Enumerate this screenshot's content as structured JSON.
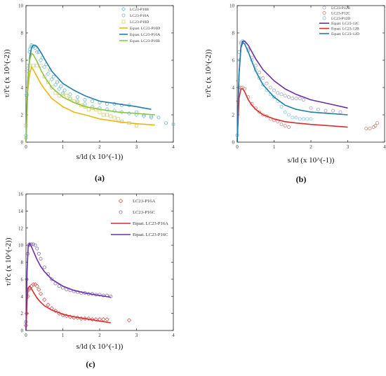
{
  "chart_data": [
    {
      "type": "scatter",
      "panel_label": "(a)",
      "xlabel": "s/ld (x 10^(-1))",
      "ylabel": "τ/f'c (x 10^(-2))",
      "xlim": [
        0,
        4
      ],
      "ylim": [
        0,
        10
      ],
      "xticks": [
        "0",
        "1",
        "2",
        "3",
        "4"
      ],
      "yticks": [
        "0",
        "2",
        "4",
        "6",
        "8",
        "10"
      ],
      "legend_position": "top-right",
      "series": [
        {
          "name": "LC23-P10B",
          "kind": "marker",
          "marker": "diamond",
          "color": "#7ec8e3",
          "x": [
            0.0,
            0.02,
            0.05,
            0.1,
            0.15,
            0.2,
            0.3,
            0.4,
            0.5,
            0.6,
            0.7,
            0.8,
            0.9,
            1.0,
            1.2,
            1.4,
            1.6,
            1.8,
            2.0,
            2.2,
            2.4,
            2.6,
            2.8,
            3.0,
            3.2,
            3.4
          ],
          "y": [
            0.5,
            3.5,
            5.2,
            6.6,
            7.0,
            7.0,
            6.6,
            6.0,
            5.5,
            5.0,
            4.6,
            4.2,
            3.9,
            3.6,
            3.2,
            3.0,
            2.8,
            2.6,
            2.5,
            2.4,
            2.3,
            2.2,
            2.1,
            2.0,
            1.9,
            1.8
          ]
        },
        {
          "name": "LC23-P10A",
          "kind": "marker",
          "marker": "circle",
          "color": "#7ab6c6",
          "x": [
            0.0,
            0.02,
            0.05,
            0.1,
            0.15,
            0.2,
            0.25,
            0.35,
            0.45,
            0.55,
            0.65,
            0.75,
            0.85,
            0.95,
            1.05,
            1.2,
            1.4,
            1.6,
            1.8,
            2.0,
            2.2,
            2.4,
            2.6,
            2.8,
            3.0,
            3.2,
            3.4,
            3.6,
            3.8,
            4.0
          ],
          "y": [
            0.3,
            3.4,
            5.6,
            6.8,
            7.1,
            7.0,
            6.9,
            6.6,
            6.2,
            5.7,
            5.3,
            4.8,
            4.4,
            4.1,
            3.8,
            3.5,
            3.3,
            3.1,
            3.0,
            2.9,
            2.8,
            2.8,
            2.7,
            2.7,
            2.2,
            2.0,
            1.9,
            1.8,
            1.4,
            1.3
          ]
        },
        {
          "name": "LC23-P10D",
          "kind": "marker",
          "marker": "square",
          "color": "#d9cf7a",
          "x": [
            0.0,
            0.02,
            0.05,
            0.1,
            0.2,
            0.3,
            0.4,
            0.5,
            0.6,
            0.7,
            0.8,
            0.9,
            1.0,
            1.1,
            1.2,
            1.3,
            1.4,
            1.5,
            1.6,
            1.7,
            1.8,
            1.9,
            2.0,
            2.1,
            2.2,
            2.3,
            2.4,
            2.5,
            2.6,
            2.8,
            3.0
          ],
          "y": [
            1.2,
            5.2,
            5.6,
            5.6,
            5.6,
            5.6,
            5.6,
            4.8,
            4.4,
            4.0,
            3.6,
            3.4,
            3.5,
            3.4,
            3.2,
            3.0,
            2.9,
            2.7,
            2.6,
            2.4,
            2.5,
            2.4,
            2.2,
            2.0,
            2.0,
            1.9,
            1.8,
            1.7,
            1.5,
            1.4,
            1.2
          ]
        },
        {
          "name": "Equat. LC23-P10D",
          "kind": "line",
          "color": "#e7b812",
          "x": [
            0.0,
            0.05,
            0.1,
            0.15,
            0.2,
            0.3,
            0.4,
            0.5,
            0.7,
            1.0,
            1.3,
            1.6,
            2.0,
            2.5,
            3.0,
            3.5
          ],
          "y": [
            0.0,
            3.8,
            5.0,
            5.5,
            5.3,
            4.8,
            4.3,
            3.9,
            3.2,
            2.6,
            2.2,
            2.0,
            1.7,
            1.5,
            1.35,
            1.25
          ]
        },
        {
          "name": "Equat. LC23-P10A",
          "kind": "line",
          "color": "#1f7fa8",
          "x": [
            0.0,
            0.05,
            0.1,
            0.15,
            0.2,
            0.25,
            0.3,
            0.4,
            0.5,
            0.7,
            1.0,
            1.3,
            1.6,
            2.0,
            2.5,
            3.0,
            3.4
          ],
          "y": [
            0.0,
            4.5,
            6.2,
            6.9,
            7.1,
            7.1,
            7.0,
            6.6,
            6.1,
            5.2,
            4.3,
            3.8,
            3.4,
            3.0,
            2.8,
            2.6,
            2.4
          ]
        },
        {
          "name": "Equat. LC23-P10B",
          "kind": "line",
          "color": "#8cc63f",
          "x": [
            0.0,
            0.05,
            0.1,
            0.15,
            0.2,
            0.3,
            0.4,
            0.5,
            0.7,
            1.0,
            1.3,
            1.6,
            2.0,
            2.5,
            3.0,
            3.5
          ],
          "y": [
            0.0,
            4.4,
            6.0,
            6.5,
            6.4,
            5.9,
            5.3,
            4.8,
            4.0,
            3.3,
            2.9,
            2.6,
            2.4,
            2.2,
            2.1,
            2.0
          ]
        }
      ]
    },
    {
      "type": "scatter",
      "panel_label": "(b)",
      "xlabel": "s/ld (x 10^(-1))",
      "ylabel": "τ/f'c (x 10^(-2))",
      "xlim": [
        0,
        4
      ],
      "ylim": [
        0,
        10
      ],
      "xticks": [
        "0",
        "1",
        "2",
        "3",
        "4"
      ],
      "yticks": [
        "0",
        "2",
        "4",
        "6",
        "8",
        "10"
      ],
      "legend_position": "top-right",
      "series": [
        {
          "name": "LC23-P12B",
          "kind": "marker",
          "marker": "circle",
          "color": "#a9a0c8",
          "x": [
            0.0,
            0.02,
            0.05,
            0.1,
            0.15,
            0.2,
            0.3,
            0.4,
            0.5,
            0.6,
            0.7,
            0.8,
            0.9,
            1.0,
            1.1,
            1.2,
            1.3,
            1.4,
            1.5,
            1.6,
            1.7,
            1.8,
            2.0,
            2.2,
            2.4,
            2.6,
            2.8
          ],
          "y": [
            0.5,
            4.5,
            6.6,
            7.3,
            7.4,
            7.3,
            6.8,
            6.2,
            5.6,
            5.1,
            4.7,
            4.3,
            4.0,
            3.8,
            3.6,
            3.5,
            3.4,
            3.3,
            3.2,
            3.2,
            3.2,
            3.1,
            2.5,
            2.4,
            2.3,
            2.3,
            2.2
          ]
        },
        {
          "name": "LC23-P12C",
          "kind": "marker",
          "marker": "circle",
          "color": "#d98080",
          "x": [
            0.0,
            0.02,
            0.05,
            0.1,
            0.15,
            0.2,
            0.3,
            0.4,
            0.5,
            0.6,
            0.7,
            0.8,
            0.9,
            1.0,
            1.1,
            1.2,
            1.3,
            1.4,
            3.5,
            3.6,
            3.7,
            3.75,
            3.8
          ],
          "y": [
            0.5,
            3.0,
            4.0,
            4.0,
            4.0,
            3.9,
            3.3,
            2.8,
            2.5,
            2.2,
            2.0,
            1.9,
            1.7,
            1.6,
            1.5,
            1.3,
            1.2,
            1.1,
            1.0,
            1.0,
            1.1,
            1.2,
            1.4
          ]
        },
        {
          "name": "LC23-P12D",
          "kind": "marker",
          "marker": "circle",
          "color": "#7ec8e3",
          "x": [
            0.0,
            0.02,
            0.05,
            0.1,
            0.15,
            0.2,
            0.3,
            0.4,
            0.5,
            0.6,
            0.7,
            0.8,
            0.9,
            1.0,
            1.1,
            1.2,
            1.3,
            1.4,
            1.5,
            1.6,
            1.7,
            1.8,
            1.9,
            2.0
          ],
          "y": [
            0.5,
            4.0,
            6.0,
            7.2,
            7.4,
            7.3,
            6.7,
            6.0,
            5.3,
            4.7,
            4.2,
            3.8,
            3.5,
            3.3,
            3.0,
            2.6,
            2.2,
            2.0,
            1.8,
            1.8,
            1.7,
            1.7,
            1.7,
            1.7
          ]
        },
        {
          "name": "Equat. LC23-12C",
          "kind": "line",
          "color": "#6b2fa6",
          "x": [
            0.0,
            0.05,
            0.1,
            0.15,
            0.2,
            0.3,
            0.4,
            0.5,
            0.7,
            1.0,
            1.3,
            1.6,
            2.0,
            2.5,
            3.0
          ],
          "y": [
            0.0,
            5.0,
            7.0,
            7.4,
            7.4,
            7.1,
            6.6,
            6.1,
            5.3,
            4.5,
            3.9,
            3.5,
            3.1,
            2.8,
            2.5
          ]
        },
        {
          "name": "Equat. LC23-12B",
          "kind": "line",
          "color": "#d62d2d",
          "x": [
            0.0,
            0.05,
            0.1,
            0.15,
            0.2,
            0.3,
            0.4,
            0.5,
            0.7,
            1.0,
            1.3,
            1.6,
            2.0,
            2.5,
            3.0
          ],
          "y": [
            0.0,
            3.2,
            3.9,
            3.9,
            3.7,
            3.1,
            2.7,
            2.4,
            2.0,
            1.7,
            1.5,
            1.4,
            1.3,
            1.2,
            1.1
          ]
        },
        {
          "name": "Equat. LC23-12D",
          "kind": "line",
          "color": "#1f7fa8",
          "x": [
            0.0,
            0.05,
            0.1,
            0.15,
            0.2,
            0.3,
            0.4,
            0.5,
            0.7,
            1.0,
            1.3,
            1.6,
            2.0,
            2.5,
            3.0
          ],
          "y": [
            0.0,
            5.0,
            6.9,
            7.3,
            7.2,
            6.6,
            5.9,
            5.2,
            4.2,
            3.3,
            2.7,
            2.4,
            2.2,
            2.1,
            2.0
          ]
        }
      ]
    },
    {
      "type": "scatter",
      "panel_label": "(c)",
      "xlabel": "s/ld (x 10^(-1))",
      "ylabel": "τ/f'c (x 10^(-2))",
      "xlim": [
        0,
        4
      ],
      "ylim": [
        0,
        16
      ],
      "xticks": [
        "0",
        "1",
        "2",
        "3",
        "4"
      ],
      "yticks": [
        "0",
        "2",
        "4",
        "6",
        "8",
        "10",
        "12",
        "14",
        "16"
      ],
      "legend_position": "top-right",
      "series": [
        {
          "name": "LC23-P16A",
          "kind": "marker",
          "marker": "diamond",
          "color": "#e35b5b",
          "x": [
            0.0,
            0.02,
            0.05,
            0.08,
            0.1,
            0.15,
            0.2,
            0.25,
            0.3,
            0.35,
            0.4,
            0.5,
            0.6,
            0.7,
            0.8,
            0.9,
            1.0,
            1.1,
            1.2,
            1.3,
            1.4,
            1.5,
            1.6,
            1.7,
            1.8,
            1.9,
            2.0,
            2.1,
            2.2,
            2.8
          ],
          "y": [
            0.6,
            2.0,
            4.0,
            4.8,
            5.0,
            5.2,
            5.4,
            5.4,
            5.2,
            4.8,
            4.3,
            3.6,
            3.0,
            2.6,
            2.3,
            2.0,
            1.8,
            1.7,
            1.6,
            1.5,
            1.5,
            1.4,
            1.4,
            1.4,
            1.3,
            1.3,
            1.3,
            1.3,
            1.3,
            1.2
          ]
        },
        {
          "name": "LC23-P16C",
          "kind": "marker",
          "marker": "circle",
          "color": "#8a6fb5",
          "x": [
            0.0,
            0.02,
            0.05,
            0.08,
            0.1,
            0.15,
            0.2,
            0.25,
            0.3,
            0.35,
            0.4,
            0.5,
            0.6,
            0.7,
            0.8,
            0.9,
            1.0,
            1.1,
            1.2,
            1.3,
            1.4,
            1.5,
            1.6,
            1.7,
            1.8,
            1.9,
            2.0,
            2.1,
            2.2,
            2.3
          ],
          "y": [
            1.0,
            6.0,
            9.0,
            10.0,
            10.1,
            10.1,
            10.1,
            10.0,
            9.6,
            9.0,
            8.4,
            7.4,
            6.6,
            6.0,
            5.5,
            5.2,
            5.0,
            4.8,
            4.7,
            4.6,
            4.5,
            4.4,
            4.4,
            4.3,
            4.3,
            4.2,
            4.2,
            4.1,
            4.1,
            4.0
          ]
        },
        {
          "name": "Equat. LC23-P16A",
          "kind": "line",
          "color": "#d62d2d",
          "x": [
            0.0,
            0.03,
            0.06,
            0.1,
            0.15,
            0.2,
            0.3,
            0.4,
            0.5,
            0.7,
            1.0,
            1.3,
            1.6,
            2.0,
            2.3
          ],
          "y": [
            0.0,
            3.5,
            5.0,
            5.2,
            4.9,
            4.5,
            3.8,
            3.3,
            2.9,
            2.4,
            1.9,
            1.6,
            1.4,
            1.1,
            0.9
          ]
        },
        {
          "name": "Equat. LC23-P16C",
          "kind": "line",
          "color": "#6b2fa6",
          "x": [
            0.0,
            0.03,
            0.06,
            0.1,
            0.15,
            0.2,
            0.3,
            0.4,
            0.5,
            0.7,
            1.0,
            1.3,
            1.6,
            2.0,
            2.3
          ],
          "y": [
            0.0,
            7.0,
            9.8,
            10.2,
            9.8,
            9.3,
            8.3,
            7.5,
            6.9,
            6.0,
            5.2,
            4.7,
            4.4,
            4.1,
            3.9
          ]
        }
      ]
    }
  ]
}
